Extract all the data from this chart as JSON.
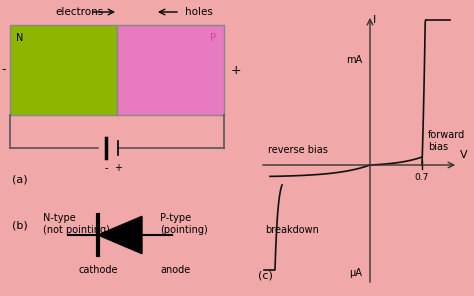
{
  "bg_color": "#f0a8a8",
  "n_color": "#8db600",
  "p_color": "#e87abf",
  "text_electrons": "electrons",
  "text_holes": "holes",
  "text_N": "N",
  "text_P": "P",
  "text_a": "(a)",
  "text_b": "(b)",
  "text_c": "(c)",
  "text_ntype": "N-type\n(not pointing)",
  "text_ptype": "P-type\n(pointing)",
  "text_cathode": "cathode",
  "text_anode": "anode",
  "text_mA": "mA",
  "text_uA": "μA",
  "text_I": "I",
  "text_V": "V",
  "text_07": "0.7",
  "text_forward": "forward\nbias",
  "text_reverse": "reverse bias",
  "text_breakdown": "breakdown",
  "axis_color": "#333333",
  "curve_color": "#111111",
  "wire_color": "#555555"
}
